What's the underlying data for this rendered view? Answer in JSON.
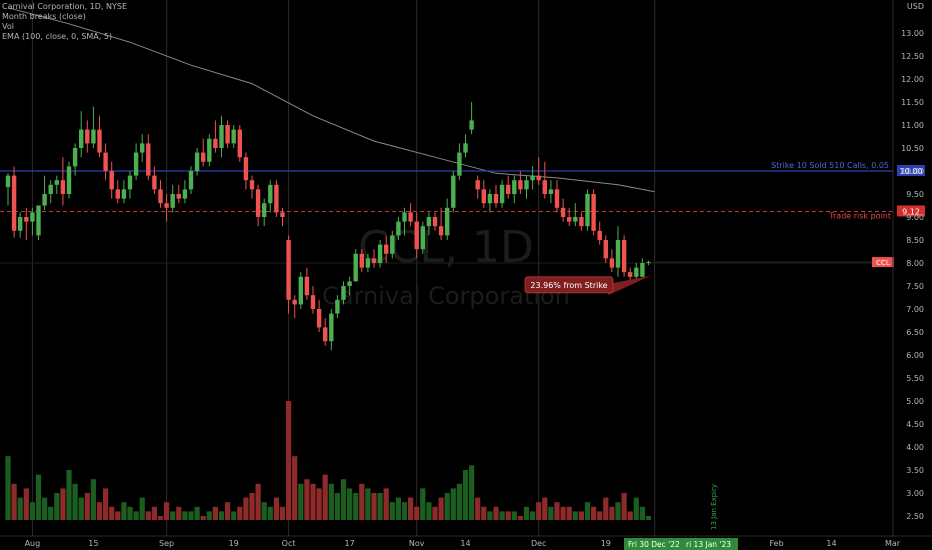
{
  "legend": {
    "symbol_line": "Carnival Corporation, 1D, NYSE",
    "line2": "Month breaks (close)",
    "line3": "Vol",
    "line4": "EMA (100, close, 0, SMA, 5)"
  },
  "currency": "USD",
  "watermark": {
    "symbol": "CCL, 1D",
    "name": "Carnival Corporation"
  },
  "colors": {
    "background": "#000000",
    "up": "#26a69a",
    "up_candle": "#4caf50",
    "down": "#ef5350",
    "vol_up": "#1b5e20",
    "vol_down": "#8e2a2a",
    "ema": "#8a8a8a",
    "strike_line": "#2e3fb3",
    "risk_line": "#d32f2f",
    "callout": "#801f1f"
  },
  "chart_data": {
    "type": "candlestick",
    "y_ticks": [
      "13.00",
      "12.50",
      "12.00",
      "11.50",
      "11.00",
      "10.50",
      "10.00",
      "9.50",
      "9.00",
      "8.50",
      "8.00",
      "7.50",
      "7.00",
      "6.50",
      "6.00",
      "5.50",
      "5.00",
      "4.50",
      "4.00",
      "3.50",
      "3.00",
      "2.50"
    ],
    "ylim": [
      2.2,
      13.6
    ],
    "x_ticks": [
      {
        "label": "Aug",
        "bar": 4
      },
      {
        "label": "15",
        "bar": 14
      },
      {
        "label": "Sep",
        "bar": 26
      },
      {
        "label": "19",
        "bar": 37
      },
      {
        "label": "Oct",
        "bar": 46
      },
      {
        "label": "17",
        "bar": 56
      },
      {
        "label": "Nov",
        "bar": 67
      },
      {
        "label": "14",
        "bar": 75
      },
      {
        "label": "Dec",
        "bar": 87
      },
      {
        "label": "19",
        "bar": 98
      },
      {
        "label": "Feb",
        "bar": 126
      },
      {
        "label": "14",
        "bar": 135
      },
      {
        "label": "Mar",
        "bar": 145
      }
    ],
    "month_breaks": [
      4,
      26,
      46,
      67,
      87,
      106
    ],
    "bars": [
      {
        "o": 9.65,
        "h": 9.95,
        "l": 9.25,
        "c": 9.9
      },
      {
        "o": 9.9,
        "h": 10.1,
        "l": 8.55,
        "c": 8.7
      },
      {
        "o": 8.7,
        "h": 9.1,
        "l": 8.55,
        "c": 9.0
      },
      {
        "o": 9.0,
        "h": 9.2,
        "l": 8.5,
        "c": 8.9
      },
      {
        "o": 8.9,
        "h": 9.2,
        "l": 8.6,
        "c": 9.1
      },
      {
        "o": 8.6,
        "h": 9.2,
        "l": 8.5,
        "c": 9.25
      },
      {
        "o": 9.25,
        "h": 9.9,
        "l": 9.15,
        "c": 9.5
      },
      {
        "o": 9.5,
        "h": 9.8,
        "l": 9.3,
        "c": 9.7
      },
      {
        "o": 9.7,
        "h": 9.9,
        "l": 9.5,
        "c": 9.8
      },
      {
        "o": 9.8,
        "h": 10.3,
        "l": 9.25,
        "c": 9.5
      },
      {
        "o": 9.5,
        "h": 10.2,
        "l": 9.4,
        "c": 10.1
      },
      {
        "o": 10.1,
        "h": 10.6,
        "l": 9.9,
        "c": 10.5
      },
      {
        "o": 10.5,
        "h": 11.3,
        "l": 10.3,
        "c": 10.9
      },
      {
        "o": 10.9,
        "h": 11.1,
        "l": 10.4,
        "c": 10.6
      },
      {
        "o": 10.6,
        "h": 11.4,
        "l": 10.5,
        "c": 10.9
      },
      {
        "o": 10.9,
        "h": 11.2,
        "l": 10.3,
        "c": 10.4
      },
      {
        "o": 10.4,
        "h": 10.6,
        "l": 9.8,
        "c": 10.0
      },
      {
        "o": 10.0,
        "h": 10.2,
        "l": 9.4,
        "c": 9.6
      },
      {
        "o": 9.6,
        "h": 9.8,
        "l": 9.3,
        "c": 9.4
      },
      {
        "o": 9.4,
        "h": 9.8,
        "l": 9.3,
        "c": 9.6
      },
      {
        "o": 9.6,
        "h": 10.0,
        "l": 9.4,
        "c": 9.9
      },
      {
        "o": 9.9,
        "h": 10.6,
        "l": 9.8,
        "c": 10.4
      },
      {
        "o": 10.4,
        "h": 10.8,
        "l": 10.2,
        "c": 10.6
      },
      {
        "o": 10.6,
        "h": 10.8,
        "l": 9.8,
        "c": 9.9
      },
      {
        "o": 9.9,
        "h": 10.1,
        "l": 9.5,
        "c": 9.6
      },
      {
        "o": 9.6,
        "h": 9.8,
        "l": 9.2,
        "c": 9.3
      },
      {
        "o": 9.3,
        "h": 9.5,
        "l": 8.9,
        "c": 9.2
      },
      {
        "o": 9.2,
        "h": 9.7,
        "l": 9.1,
        "c": 9.5
      },
      {
        "o": 9.5,
        "h": 9.7,
        "l": 9.3,
        "c": 9.4
      },
      {
        "o": 9.4,
        "h": 9.8,
        "l": 9.3,
        "c": 9.6
      },
      {
        "o": 9.6,
        "h": 10.1,
        "l": 9.5,
        "c": 10.0
      },
      {
        "o": 10.0,
        "h": 10.5,
        "l": 9.9,
        "c": 10.4
      },
      {
        "o": 10.4,
        "h": 10.7,
        "l": 10.1,
        "c": 10.2
      },
      {
        "o": 10.2,
        "h": 10.8,
        "l": 10.1,
        "c": 10.7
      },
      {
        "o": 10.7,
        "h": 11.1,
        "l": 10.4,
        "c": 10.5
      },
      {
        "o": 10.5,
        "h": 11.2,
        "l": 10.3,
        "c": 11.0
      },
      {
        "o": 11.0,
        "h": 11.1,
        "l": 10.5,
        "c": 10.6
      },
      {
        "o": 10.6,
        "h": 11.0,
        "l": 10.5,
        "c": 10.9
      },
      {
        "o": 10.9,
        "h": 11.0,
        "l": 10.2,
        "c": 10.3
      },
      {
        "o": 10.3,
        "h": 10.4,
        "l": 9.6,
        "c": 9.8
      },
      {
        "o": 9.8,
        "h": 9.9,
        "l": 9.4,
        "c": 9.6
      },
      {
        "o": 9.6,
        "h": 9.7,
        "l": 8.8,
        "c": 9.0
      },
      {
        "o": 9.0,
        "h": 9.4,
        "l": 8.8,
        "c": 9.3
      },
      {
        "o": 9.3,
        "h": 9.8,
        "l": 9.1,
        "c": 9.7
      },
      {
        "o": 9.7,
        "h": 9.8,
        "l": 9.0,
        "c": 9.1
      },
      {
        "o": 9.1,
        "h": 9.2,
        "l": 8.8,
        "c": 9.0
      },
      {
        "o": 8.5,
        "h": 8.6,
        "l": 6.9,
        "c": 7.2
      },
      {
        "o": 7.2,
        "h": 7.3,
        "l": 6.8,
        "c": 7.1
      },
      {
        "o": 7.1,
        "h": 7.8,
        "l": 7.0,
        "c": 7.7
      },
      {
        "o": 7.7,
        "h": 7.9,
        "l": 7.2,
        "c": 7.3
      },
      {
        "o": 7.3,
        "h": 7.5,
        "l": 6.9,
        "c": 7.0
      },
      {
        "o": 7.0,
        "h": 7.2,
        "l": 6.5,
        "c": 6.6
      },
      {
        "o": 6.6,
        "h": 6.8,
        "l": 6.2,
        "c": 6.3
      },
      {
        "o": 6.3,
        "h": 7.0,
        "l": 6.1,
        "c": 6.9
      },
      {
        "o": 6.9,
        "h": 7.3,
        "l": 6.8,
        "c": 7.2
      },
      {
        "o": 7.2,
        "h": 7.6,
        "l": 7.1,
        "c": 7.5
      },
      {
        "o": 7.5,
        "h": 7.7,
        "l": 7.3,
        "c": 7.6
      },
      {
        "o": 7.6,
        "h": 8.3,
        "l": 7.6,
        "c": 8.2
      },
      {
        "o": 8.2,
        "h": 8.3,
        "l": 7.8,
        "c": 7.9
      },
      {
        "o": 7.9,
        "h": 8.2,
        "l": 7.8,
        "c": 8.1
      },
      {
        "o": 8.1,
        "h": 8.3,
        "l": 7.9,
        "c": 8.0
      },
      {
        "o": 8.0,
        "h": 8.5,
        "l": 7.9,
        "c": 8.4
      },
      {
        "o": 8.4,
        "h": 8.6,
        "l": 8.0,
        "c": 8.2
      },
      {
        "o": 8.2,
        "h": 8.7,
        "l": 8.1,
        "c": 8.6
      },
      {
        "o": 8.6,
        "h": 9.0,
        "l": 8.5,
        "c": 8.9
      },
      {
        "o": 8.9,
        "h": 9.2,
        "l": 8.6,
        "c": 9.1
      },
      {
        "o": 9.1,
        "h": 9.3,
        "l": 8.8,
        "c": 8.9
      },
      {
        "o": 8.9,
        "h": 9.1,
        "l": 8.1,
        "c": 8.3
      },
      {
        "o": 8.3,
        "h": 8.9,
        "l": 8.2,
        "c": 8.8
      },
      {
        "o": 8.8,
        "h": 9.1,
        "l": 8.6,
        "c": 9.0
      },
      {
        "o": 9.0,
        "h": 9.1,
        "l": 8.7,
        "c": 8.8
      },
      {
        "o": 8.8,
        "h": 9.2,
        "l": 8.5,
        "c": 8.6
      },
      {
        "o": 8.6,
        "h": 9.4,
        "l": 8.5,
        "c": 9.2
      },
      {
        "o": 9.2,
        "h": 10.0,
        "l": 9.1,
        "c": 9.9
      },
      {
        "o": 9.9,
        "h": 10.6,
        "l": 9.8,
        "c": 10.4
      },
      {
        "o": 10.4,
        "h": 10.8,
        "l": 10.3,
        "c": 10.6
      },
      {
        "o": 10.9,
        "h": 11.5,
        "l": 10.8,
        "c": 11.1
      },
      {
        "o": 9.8,
        "h": 9.9,
        "l": 9.4,
        "c": 9.6
      },
      {
        "o": 9.6,
        "h": 9.8,
        "l": 9.2,
        "c": 9.3
      },
      {
        "o": 9.3,
        "h": 9.6,
        "l": 9.1,
        "c": 9.5
      },
      {
        "o": 9.5,
        "h": 9.7,
        "l": 9.2,
        "c": 9.3
      },
      {
        "o": 9.3,
        "h": 9.8,
        "l": 9.2,
        "c": 9.7
      },
      {
        "o": 9.7,
        "h": 9.9,
        "l": 9.4,
        "c": 9.5
      },
      {
        "o": 9.5,
        "h": 9.9,
        "l": 9.3,
        "c": 9.8
      },
      {
        "o": 9.8,
        "h": 10.0,
        "l": 9.5,
        "c": 9.6
      },
      {
        "o": 9.6,
        "h": 9.9,
        "l": 9.4,
        "c": 9.8
      },
      {
        "o": 9.8,
        "h": 10.1,
        "l": 9.6,
        "c": 9.9
      },
      {
        "o": 9.9,
        "h": 10.3,
        "l": 9.7,
        "c": 9.8
      },
      {
        "o": 9.8,
        "h": 10.2,
        "l": 9.4,
        "c": 9.5
      },
      {
        "o": 9.5,
        "h": 9.8,
        "l": 9.3,
        "c": 9.6
      },
      {
        "o": 9.6,
        "h": 9.8,
        "l": 9.1,
        "c": 9.2
      },
      {
        "o": 9.2,
        "h": 9.4,
        "l": 8.9,
        "c": 9.0
      },
      {
        "o": 9.0,
        "h": 9.2,
        "l": 8.8,
        "c": 8.9
      },
      {
        "o": 8.9,
        "h": 9.3,
        "l": 8.8,
        "c": 9.0
      },
      {
        "o": 9.0,
        "h": 9.1,
        "l": 8.7,
        "c": 8.8
      },
      {
        "o": 8.8,
        "h": 9.6,
        "l": 8.7,
        "c": 9.5
      },
      {
        "o": 9.5,
        "h": 9.6,
        "l": 8.6,
        "c": 8.7
      },
      {
        "o": 8.7,
        "h": 8.9,
        "l": 8.4,
        "c": 8.5
      },
      {
        "o": 8.5,
        "h": 8.6,
        "l": 8.0,
        "c": 8.1
      },
      {
        "o": 8.1,
        "h": 8.3,
        "l": 7.8,
        "c": 7.9
      },
      {
        "o": 7.9,
        "h": 8.8,
        "l": 7.7,
        "c": 8.5
      },
      {
        "o": 8.5,
        "h": 8.6,
        "l": 7.7,
        "c": 7.8
      },
      {
        "o": 7.8,
        "h": 7.9,
        "l": 7.6,
        "c": 7.7
      },
      {
        "o": 7.7,
        "h": 8.0,
        "l": 7.6,
        "c": 7.9
      },
      {
        "o": 7.7,
        "h": 8.1,
        "l": 7.7,
        "c": 8.0
      },
      {
        "o": 8.0,
        "h": 8.05,
        "l": 7.95,
        "c": 8.02
      }
    ],
    "volume_ticks_scale": "price",
    "volumes": [
      3.8,
      3.2,
      2.9,
      3.1,
      2.8,
      3.4,
      2.9,
      2.7,
      3.0,
      3.1,
      3.5,
      3.2,
      2.9,
      3.0,
      3.3,
      2.8,
      3.1,
      2.7,
      2.6,
      2.8,
      2.7,
      2.6,
      2.9,
      2.6,
      2.7,
      2.5,
      2.8,
      2.6,
      2.7,
      2.6,
      2.6,
      2.7,
      2.5,
      2.6,
      2.7,
      2.6,
      2.8,
      2.6,
      2.7,
      2.9,
      3.0,
      3.2,
      2.8,
      2.7,
      2.9,
      2.7,
      5.0,
      3.8,
      3.2,
      3.3,
      3.2,
      3.1,
      3.4,
      3.2,
      3.0,
      3.3,
      3.1,
      3.0,
      3.2,
      3.1,
      3.0,
      3.0,
      3.1,
      2.8,
      2.9,
      2.8,
      2.9,
      2.7,
      3.1,
      2.8,
      2.7,
      2.9,
      3.0,
      3.1,
      3.2,
      3.5,
      3.6,
      2.9,
      2.7,
      2.6,
      2.7,
      2.6,
      2.6,
      2.6,
      2.5,
      2.7,
      2.6,
      2.8,
      2.9,
      2.7,
      2.8,
      2.7,
      2.7,
      2.6,
      2.6,
      2.8,
      2.7,
      2.6,
      2.9,
      2.7,
      2.8,
      3.0,
      2.6,
      2.9,
      2.7,
      2.5
    ],
    "ema_points": [
      [
        0,
        13.55
      ],
      [
        10,
        13.2
      ],
      [
        20,
        12.8
      ],
      [
        30,
        12.3
      ],
      [
        40,
        11.9
      ],
      [
        50,
        11.2
      ],
      [
        60,
        10.65
      ],
      [
        70,
        10.3
      ],
      [
        80,
        9.95
      ],
      [
        90,
        9.85
      ],
      [
        100,
        9.7
      ],
      [
        106,
        9.55
      ]
    ],
    "levels": [
      {
        "price": 10.0,
        "label": "Strike 10 Sold 510 Calls, 0.05",
        "tag": "10.00",
        "kind": "strike"
      },
      {
        "price": 9.12,
        "label": "Trade risk point",
        "tag": "9.12",
        "kind": "risk"
      }
    ],
    "last_price_tag": "CCL",
    "last_price": 8.02,
    "callout": {
      "text": "23.96% from Strike",
      "anchor_bar": 104,
      "anchor_price": 7.72
    },
    "expiry_label": "13 Jan Expiry",
    "time_labels": [
      "Fri 30 Dec '22",
      "ri 13 Jan '23"
    ]
  }
}
